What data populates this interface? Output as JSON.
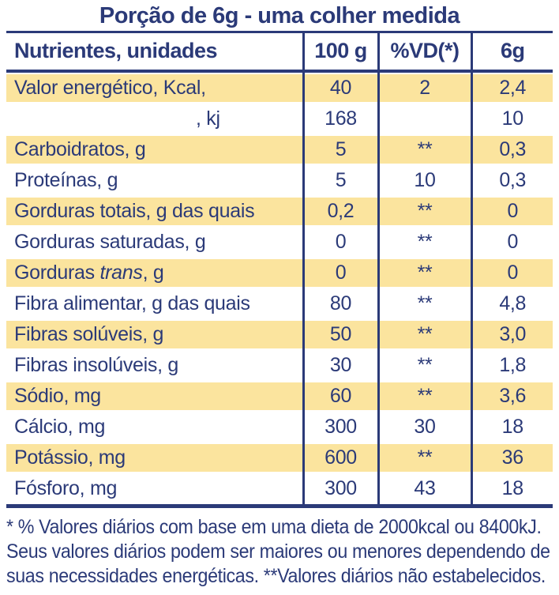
{
  "title": "Porção de 6g - uma colher medida",
  "colors": {
    "navy": "#2b3a78",
    "yellow": "#fbe49e",
    "background": "#ffffff"
  },
  "table": {
    "headers": [
      "Nutrientes, unidades",
      "100 g",
      "%VD(*)",
      "6g"
    ],
    "rows": [
      {
        "label": "Valor energético, Kcal,",
        "per100g": "40",
        "vd": "2",
        "per6g": "2,4"
      },
      {
        "label": ", kj",
        "per100g": "168",
        "vd": "",
        "per6g": "10"
      },
      {
        "label": "Carboidratos, g",
        "per100g": "5",
        "vd": "**",
        "per6g": "0,3"
      },
      {
        "label": "Proteínas, g",
        "per100g": "5",
        "vd": "10",
        "per6g": "0,3"
      },
      {
        "label": "Gorduras totais, g das quais",
        "per100g": "0,2",
        "vd": "**",
        "per6g": "0"
      },
      {
        "label": "Gorduras saturadas, g",
        "per100g": "0",
        "vd": "**",
        "per6g": "0"
      },
      {
        "label_pre": "Gorduras ",
        "label_italic": "trans",
        "label_post": ", g",
        "per100g": "0",
        "vd": "**",
        "per6g": "0"
      },
      {
        "label": "Fibra alimentar, g das quais",
        "per100g": "80",
        "vd": "**",
        "per6g": "4,8"
      },
      {
        "label": "Fibras solúveis, g",
        "per100g": "50",
        "vd": "**",
        "per6g": "3,0"
      },
      {
        "label": "Fibras insolúveis, g",
        "per100g": "30",
        "vd": "**",
        "per6g": "1,8"
      },
      {
        "label": "Sódio, mg",
        "per100g": "60",
        "vd": "**",
        "per6g": "3,6"
      },
      {
        "label": "Cálcio, mg",
        "per100g": "300",
        "vd": "30",
        "per6g": "18"
      },
      {
        "label": "Potássio, mg",
        "per100g": "600",
        "vd": "**",
        "per6g": "36"
      },
      {
        "label": "Fósforo, mg",
        "per100g": "300",
        "vd": "43",
        "per6g": "18"
      }
    ]
  },
  "footnote": {
    "lines": [
      "* % Valores diários com base em uma dieta de 2000kcal ou 8400kJ.",
      "Seus valores diários podem ser maiores ou menores dependendo de",
      "suas necessidades energéticas. **Valores diários não estabelecidos."
    ]
  }
}
